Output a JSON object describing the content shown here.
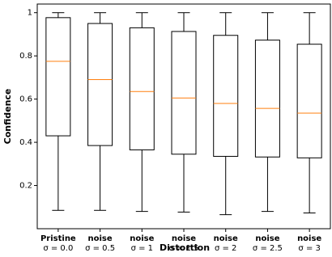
{
  "chart_data": {
    "type": "box",
    "x_label": "Distortion",
    "y_label": "Confidence",
    "categories": [
      [
        "Pristine",
        "σ = 0.0"
      ],
      [
        "noise",
        "σ = 0.5"
      ],
      [
        "noise",
        "σ = 1"
      ],
      [
        "noise",
        "σ = 1.5"
      ],
      [
        "noise",
        "σ = 2"
      ],
      [
        "noise",
        "σ = 2.5"
      ],
      [
        "noise",
        "σ = 3"
      ]
    ],
    "whishi": [
      1.0,
      1.0,
      1.0,
      1.0,
      1.0,
      1.0,
      1.0
    ],
    "q3": [
      0.977,
      0.95,
      0.93,
      0.913,
      0.895,
      0.873,
      0.854
    ],
    "med": [
      0.775,
      0.69,
      0.635,
      0.605,
      0.58,
      0.557,
      0.535
    ],
    "q1": [
      0.43,
      0.385,
      0.365,
      0.345,
      0.335,
      0.332,
      0.328
    ],
    "whislo": [
      0.085,
      0.085,
      0.08,
      0.077,
      0.065,
      0.08,
      0.073
    ],
    "box_color": "#000000",
    "median_color": "#ff7f0e",
    "ylim": [
      0.0,
      1.04
    ],
    "yticks": [
      0.2,
      0.4,
      0.6,
      0.8,
      1.0
    ]
  }
}
